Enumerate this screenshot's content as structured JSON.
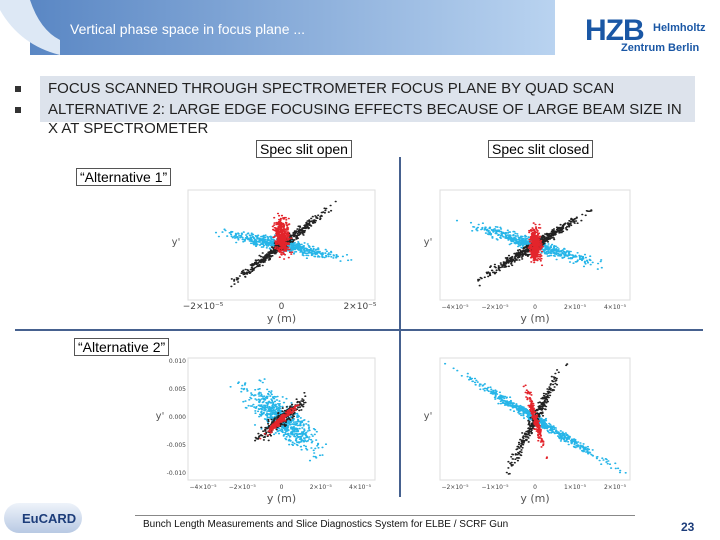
{
  "header": {
    "title": "Vertical phase space in focus plane ...",
    "logo": {
      "main": "HZB",
      "line1": "Helmholtz",
      "line2": "Zentrum Berlin"
    }
  },
  "bullets": [
    "FOCUS SCANNED THROUGH SPECTROMETER FOCUS PLANE BY QUAD SCAN",
    "ALTERNATIVE 2: LARGE EDGE FOCUSING EFFECTS BECAUSE OF LARGE BEAM SIZE IN X AT SPECTROMETER"
  ],
  "column_labels": [
    "Spec slit open",
    "Spec slit closed"
  ],
  "row_labels": [
    "“Alternative 1”",
    "“Alternative 2”"
  ],
  "plots": [
    {
      "x_label": "y (m)",
      "y_label": "y'",
      "x_ticks": [
        "−2×10⁻⁵",
        "0",
        "2×10⁻⁵"
      ]
    },
    {
      "x_label": "y (m)",
      "y_label": "y'",
      "x_ticks": [
        "−4×10⁻⁵",
        "−2×10⁻⁵",
        "0",
        "2×10⁻⁵",
        "4×10⁻⁵"
      ]
    },
    {
      "x_label": "y (m)",
      "y_label": "y'",
      "x_ticks": [
        "−4×10⁻⁵",
        "−2×10⁻⁵",
        "0",
        "2×10⁻⁵",
        "4×10⁻⁵"
      ],
      "y_ticks": [
        "0.010",
        "0.005",
        "0.000",
        "-0.005",
        "-0.010"
      ]
    },
    {
      "x_label": "y (m)",
      "y_label": "y'",
      "x_ticks": [
        "−2×10⁻⁵",
        "−1×10⁻⁵",
        "0",
        "1×10⁻⁵",
        "2×10⁻⁵"
      ]
    }
  ],
  "footer": {
    "logo": "EuCARD",
    "text": "Bunch Length Measurements and Slice Diagnostics System for ELBE / SCRF Gun",
    "page": "23"
  }
}
